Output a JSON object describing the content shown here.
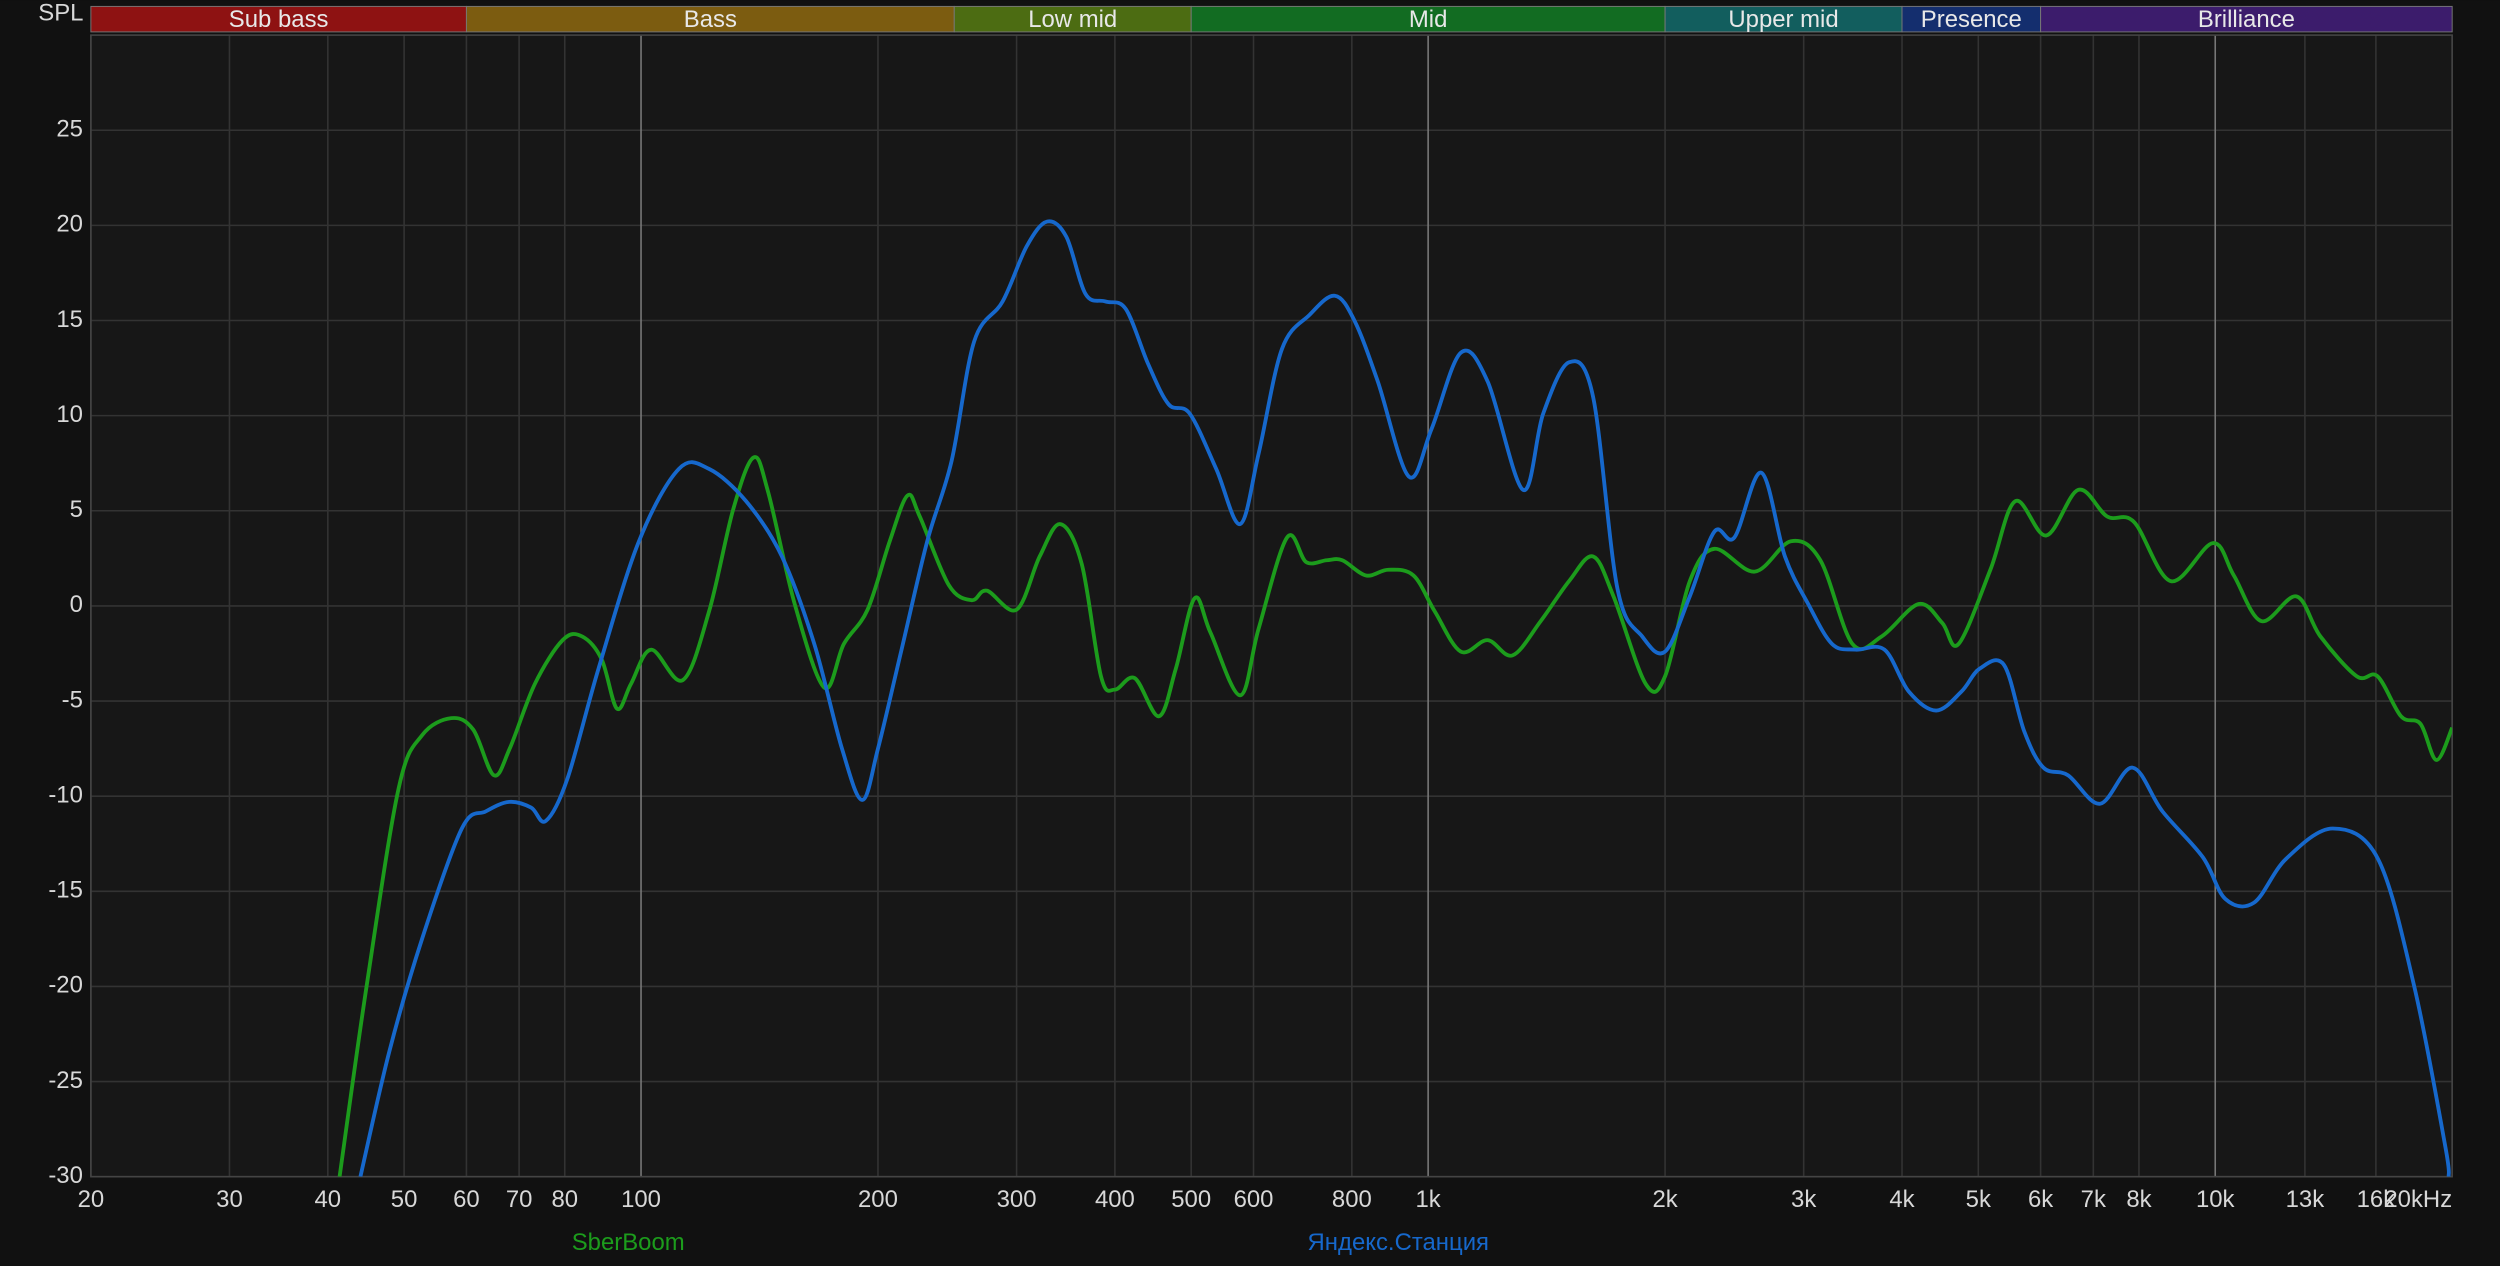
{
  "chart_data": {
    "type": "line",
    "y_label": "SPL",
    "log_x": true,
    "grid": true,
    "xlim": [
      20,
      20000
    ],
    "ylim": [
      -30,
      30
    ],
    "xticks": [
      20,
      30,
      40,
      50,
      60,
      70,
      80,
      100,
      200,
      300,
      400,
      500,
      600,
      800,
      {
        "value": 1000,
        "label": "1k"
      },
      {
        "value": 2000,
        "label": "2k"
      },
      {
        "value": 3000,
        "label": "3k"
      },
      {
        "value": 4000,
        "label": "4k"
      },
      {
        "value": 5000,
        "label": "5k"
      },
      {
        "value": 6000,
        "label": "6k"
      },
      {
        "value": 7000,
        "label": "7k"
      },
      {
        "value": 8000,
        "label": "8k"
      },
      {
        "value": 10000,
        "label": "10k"
      },
      {
        "value": 13000,
        "label": "13k"
      },
      {
        "value": 16000,
        "label": "16k"
      },
      {
        "value": 20000,
        "label": "20kHz"
      }
    ],
    "yticks": [
      -30,
      -25,
      -20,
      -15,
      -10,
      -5,
      0,
      5,
      10,
      15,
      20,
      25
    ],
    "bands": [
      {
        "name": "Sub bass",
        "color": "#8e1212",
        "from": 20,
        "to": 60
      },
      {
        "name": "Bass",
        "color": "#7c5c10",
        "from": 60,
        "to": 250
      },
      {
        "name": "Low mid",
        "color": "#4c6c12",
        "from": 250,
        "to": 500
      },
      {
        "name": "Mid",
        "color": "#126c22",
        "from": 500,
        "to": 2000
      },
      {
        "name": "Upper mid",
        "color": "#125e5e",
        "from": 2000,
        "to": 4000
      },
      {
        "name": "Presence",
        "color": "#142e6e",
        "from": 4000,
        "to": 6000
      },
      {
        "name": "Brilliance",
        "color": "#3c1c6c",
        "from": 6000,
        "to": 20000
      }
    ],
    "series": [
      {
        "name": "SberBoom",
        "color": "#1c9c1c",
        "x": [
          41.4,
          44.8,
          49.2,
          52.7,
          57.4,
          61.2,
          65,
          68.1,
          73.3,
          79.5,
          84.1,
          89.1,
          93.2,
          97.1,
          103,
          113,
          122,
          131,
          139,
          145,
          157,
          171,
          181,
          194,
          207,
          218,
          226,
          246,
          263,
          275,
          300,
          321,
          341,
          363,
          384,
          400,
          424,
          455,
          478,
          505,
          529,
          577,
          609,
          662,
          700,
          743,
          778,
          834,
          890,
          958,
          1020,
          1100,
          1190,
          1280,
          1390,
          1510,
          1620,
          1720,
          1890,
          2000,
          2150,
          2310,
          2600,
          2890,
          3150,
          3460,
          3770,
          4200,
          4500,
          4720,
          5180,
          5570,
          6100,
          6700,
          7290,
          7890,
          8780,
          9930,
          10560,
          11440,
          12680,
          13600,
          15130,
          16080,
          17220,
          18230,
          19100,
          20000
        ],
        "values": [
          -30,
          -20,
          -9.6,
          -6.8,
          -5.9,
          -6.5,
          -8.9,
          -7.5,
          -4.1,
          -1.8,
          -1.6,
          -2.8,
          -5.4,
          -4.1,
          -2.3,
          -3.9,
          -0.3,
          5.1,
          7.8,
          6,
          0,
          -4.3,
          -2,
          -0.2,
          3.4,
          5.8,
          4.7,
          1.1,
          0.3,
          0.8,
          -0.2,
          2.6,
          4.3,
          2.2,
          -3.7,
          -4.4,
          -3.8,
          -5.8,
          -3.3,
          0.4,
          -1.4,
          -4.7,
          -1.2,
          3.6,
          2.3,
          2.4,
          2.4,
          1.6,
          1.9,
          1.6,
          -0.3,
          -2.4,
          -1.8,
          -2.6,
          -0.8,
          1.3,
          2.6,
          0.5,
          -4.1,
          -3.7,
          1.3,
          3,
          1.8,
          3.4,
          2.4,
          -2,
          -1.6,
          0.1,
          -0.9,
          -2,
          1.9,
          5.5,
          3.7,
          6.1,
          4.7,
          4.4,
          1.3,
          3.3,
          1.6,
          -0.8,
          0.5,
          -1.6,
          -3.7,
          -3.7,
          -5.8,
          -6.2,
          -8.1,
          -6.4
        ]
      },
      {
        "name": "Яндекс.Станция",
        "color": "#1668cc",
        "x": [
          44,
          47.9,
          52.7,
          59.2,
          63.5,
          68,
          72.5,
          75.7,
          80.6,
          88.3,
          99.4,
          111.7,
          122,
          136,
          151,
          166,
          180,
          191,
          200,
          214,
          231,
          248,
          265,
          288,
          309,
          328,
          347,
          367,
          389,
          413,
          441,
          468,
          498,
          538,
          577,
          609,
          652,
          707,
          761,
          806,
          863,
          945,
          1010,
          1100,
          1190,
          1320,
          1400,
          1510,
          1620,
          1740,
          1870,
          2000,
          2150,
          2310,
          2450,
          2650,
          2840,
          3040,
          3260,
          3490,
          3800,
          4080,
          4420,
          4760,
          5020,
          5390,
          5720,
          6050,
          6500,
          7140,
          7850,
          8570,
          9640,
          10300,
          11200,
          12300,
          14100,
          16100,
          17900,
          19600,
          19800
        ],
        "values": [
          -30,
          -23.4,
          -17.5,
          -11.7,
          -10.8,
          -10.3,
          -10.6,
          -11.3,
          -9.1,
          -3.3,
          3.4,
          7.2,
          7.2,
          5.5,
          2.6,
          -2,
          -7.5,
          -10.2,
          -7.5,
          -2.4,
          3.4,
          7.6,
          13.9,
          16,
          18.9,
          20.2,
          19.4,
          16.4,
          16,
          15.6,
          12.7,
          10.6,
          10.1,
          7.2,
          4.3,
          8,
          13.5,
          15.3,
          16.3,
          15,
          11.8,
          6.8,
          9.3,
          13.3,
          11.8,
          6.1,
          10.1,
          12.8,
          11,
          0.9,
          -1.6,
          -2.4,
          0.5,
          3.9,
          3.6,
          7,
          2.6,
          0.1,
          -2,
          -2.3,
          -2.3,
          -4.5,
          -5.5,
          -4.5,
          -3.3,
          -3.1,
          -6.6,
          -8.5,
          -8.9,
          -10.4,
          -8.5,
          -10.8,
          -13.2,
          -15.4,
          -15.6,
          -13.3,
          -11.7,
          -13.3,
          -20,
          -28.4,
          -30
        ]
      }
    ]
  }
}
